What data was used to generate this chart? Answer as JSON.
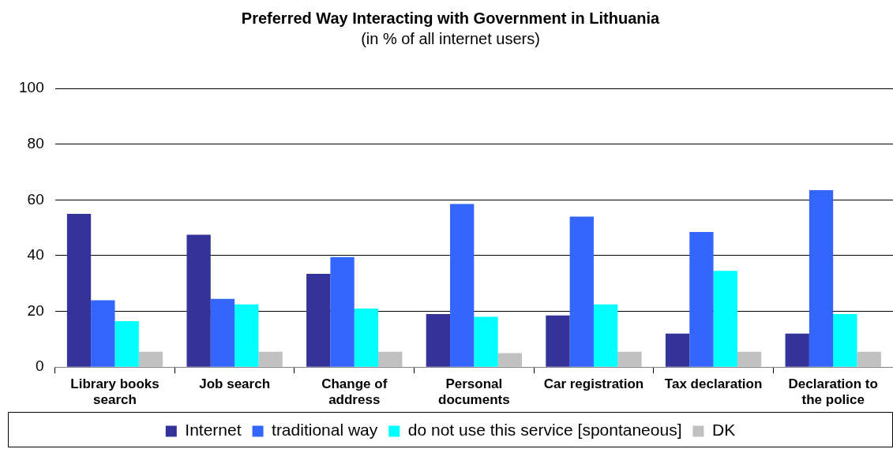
{
  "chart_data": {
    "type": "bar",
    "title": "Preferred Way Interacting with Government in Lithuania",
    "subtitle": "(in % of all internet users)",
    "categories": [
      "Library books search",
      "Job search",
      "Change of address",
      "Personal documents",
      "Car registration",
      "Tax declaration",
      "Declaration to the police"
    ],
    "series": [
      {
        "name": "Internet",
        "color": "#333399",
        "values": [
          55,
          47.5,
          33.5,
          19,
          18.5,
          12,
          12
        ]
      },
      {
        "name": "traditional way",
        "color": "#3366ff",
        "values": [
          24,
          24.5,
          39.5,
          58.5,
          54,
          48.5,
          63.5
        ]
      },
      {
        "name": "do not use this service [spontaneous]",
        "color": "#00ffff",
        "values": [
          16.5,
          22.5,
          21,
          18,
          22.5,
          34.5,
          19
        ]
      },
      {
        "name": "DK",
        "color": "#c0c0c0",
        "values": [
          5.5,
          5.5,
          5.5,
          5,
          5.5,
          5.5,
          5.5
        ]
      }
    ],
    "ylim": [
      0,
      100
    ],
    "yticks": [
      0,
      20,
      40,
      60,
      80,
      100
    ],
    "grid": "y",
    "legend": "bottom"
  }
}
